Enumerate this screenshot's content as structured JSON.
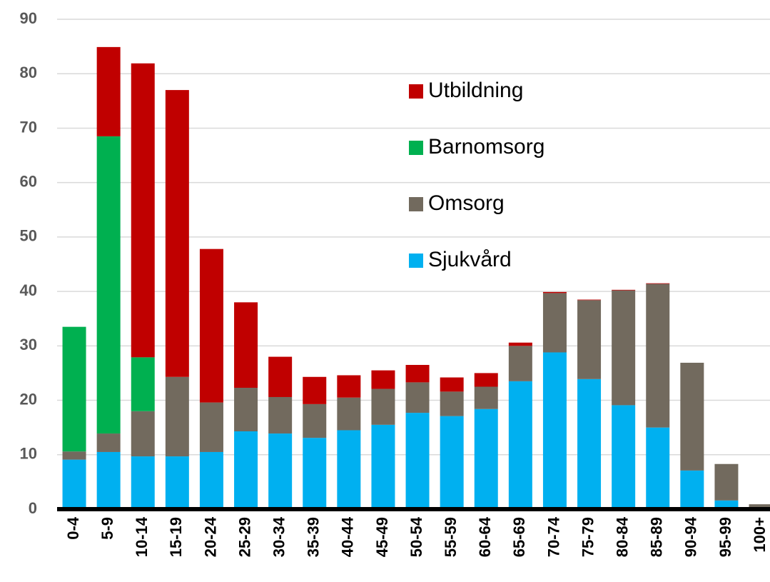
{
  "chart_data": {
    "type": "stacked_bar",
    "categories": [
      "0-4",
      "5-9",
      "10-14",
      "15-19",
      "20-24",
      "25-29",
      "30-34",
      "35-39",
      "40-44",
      "45-49",
      "50-54",
      "55-59",
      "60-64",
      "65-69",
      "70-74",
      "75-79",
      "80-84",
      "85-89",
      "90-94",
      "95-99",
      "100+"
    ],
    "series": [
      {
        "name": "Sjukvård",
        "color": "#00b0f0",
        "values": [
          9.1,
          10.5,
          9.7,
          9.7,
          10.5,
          14.3,
          13.9,
          13.1,
          14.5,
          15.5,
          17.7,
          17.1,
          18.4,
          23.5,
          28.8,
          23.9,
          19.1,
          15.0,
          7.1,
          1.6,
          0.1
        ]
      },
      {
        "name": "Omsorg",
        "color": "#726a5e",
        "values": [
          1.5,
          3.4,
          8.3,
          14.6,
          9.1,
          8.0,
          6.7,
          6.2,
          6.0,
          6.6,
          5.6,
          4.5,
          4.1,
          6.5,
          10.9,
          14.5,
          21.1,
          26.4,
          19.8,
          6.7,
          0.8
        ]
      },
      {
        "name": "Barnomsorg",
        "color": "#00b050",
        "values": [
          22.9,
          54.6,
          9.9,
          0,
          0,
          0,
          0,
          0,
          0,
          0,
          0,
          0,
          0,
          0,
          0,
          0,
          0,
          0,
          0,
          0,
          0
        ]
      },
      {
        "name": "Utbildning",
        "color": "#c00000",
        "values": [
          0,
          16.4,
          54.0,
          52.7,
          28.2,
          15.7,
          7.4,
          5.0,
          4.1,
          3.4,
          3.2,
          2.6,
          2.5,
          0.6,
          0.2,
          0.1,
          0.1,
          0.1,
          0,
          0,
          0
        ]
      }
    ],
    "ylim": [
      0,
      90
    ],
    "yticks": [
      0,
      10,
      20,
      30,
      40,
      50,
      60,
      70,
      80,
      90
    ],
    "grid": true
  }
}
